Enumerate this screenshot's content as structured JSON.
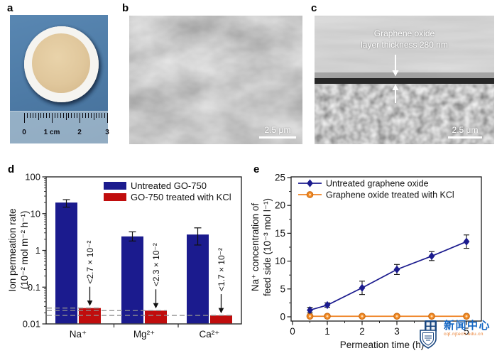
{
  "figure": {
    "panels": {
      "a": {
        "label": "a",
        "ruler_numbers": [
          "0",
          "1 cm",
          "2",
          "3"
        ]
      },
      "b": {
        "label": "b",
        "scale_bar": "2.5 μm"
      },
      "c": {
        "label": "c",
        "annotation_line1": "Graphene oxide",
        "annotation_line2": "layer thickness 280 nm",
        "scale_bar": "2.5 μm"
      },
      "d": {
        "label": "d"
      },
      "e": {
        "label": "e"
      }
    }
  },
  "watermark": {
    "title": "新闻中心",
    "subtitle": "cqt.njtech.edu.cn"
  },
  "chart_data": [
    {
      "id": "d",
      "type": "bar",
      "yscale": "log",
      "ylim": [
        0.01,
        100
      ],
      "ylabel_line1": "Ion permeation rate",
      "ylabel_line2": "(10⁻² mol m⁻² h⁻¹)",
      "ytick_values": [
        100,
        10,
        1,
        0.1,
        0.01
      ],
      "ytick_labels": [
        "100",
        "10",
        "1",
        "0.1",
        "0.01"
      ],
      "categories": [
        "Na⁺",
        "Mg²⁺",
        "Ca²⁺"
      ],
      "series": [
        {
          "name": "Untreated GO-750",
          "color": "#1b1b8e",
          "values": [
            20,
            2.4,
            2.7
          ],
          "error_low": [
            15,
            1.8,
            1.4
          ],
          "error_high": [
            24,
            3.2,
            4.1
          ]
        },
        {
          "name": "GO-750 treated with KCl",
          "color": "#c00d0d",
          "values": [
            0.027,
            0.023,
            0.017
          ],
          "error_low": null,
          "error_high": null
        }
      ],
      "detection_limits": [
        0.027,
        0.023,
        0.017
      ],
      "annotations": [
        "<2.7 × 10⁻²",
        "<2.3 × 10⁻²",
        "<1.7 × 10⁻²"
      ],
      "legend_position": "top-right",
      "grid": false
    },
    {
      "id": "e",
      "type": "line",
      "xlabel": "Permeation time (h)",
      "ylabel_line1": "Na⁺ concentration of",
      "ylabel_line2": "feed side (10⁻³ mol l⁻¹)",
      "xlim": [
        0,
        5.45
      ],
      "ylim": [
        0,
        25
      ],
      "xticks": [
        0,
        1,
        2,
        3,
        4,
        5
      ],
      "yticks": [
        0,
        5,
        10,
        15,
        20,
        25
      ],
      "x": [
        0.5,
        1,
        2,
        3,
        4,
        5
      ],
      "series": [
        {
          "name": "Untreated graphene oxide",
          "color": "#1b1b8e",
          "marker": "diamond",
          "values": [
            1.2,
            2.1,
            5.2,
            8.5,
            10.9,
            13.5
          ],
          "errors": [
            0.5,
            0.4,
            1.2,
            0.9,
            0.8,
            1.2
          ]
        },
        {
          "name": "Graphene oxide treated with KCl",
          "color": "#ef8222",
          "marker": "circle",
          "values": [
            0.1,
            0.1,
            0.1,
            0.1,
            0.1,
            0.1
          ],
          "errors": [
            0,
            0,
            0,
            0,
            0,
            0
          ]
        }
      ],
      "legend_position": "top-left",
      "grid": false
    }
  ]
}
